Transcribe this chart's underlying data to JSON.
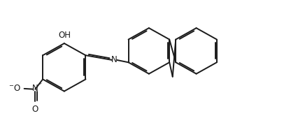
{
  "bg_color": "#ffffff",
  "bond_color": "#1a1a1a",
  "bond_width": 1.4,
  "dbo": 0.055,
  "text_color": "#1a1a1a",
  "font_size": 8.5,
  "xlim": [
    -0.5,
    10.5
  ],
  "ylim": [
    -0.2,
    4.8
  ],
  "no2_color": "#1a1a1a"
}
